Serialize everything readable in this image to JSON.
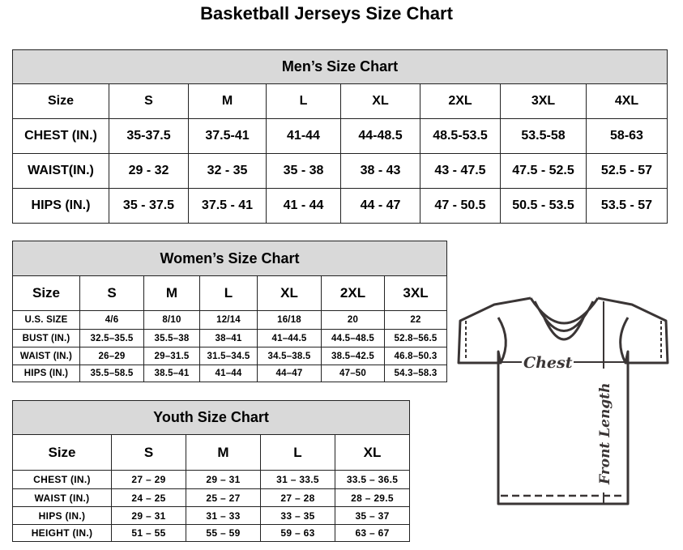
{
  "title": "Basketball Jerseys Size Chart",
  "men": {
    "title": "Men’s Size Chart",
    "header": [
      "Size",
      "S",
      "M",
      "L",
      "XL",
      "2XL",
      "3XL",
      "4XL"
    ],
    "rows": [
      [
        "CHEST (IN.)",
        "35-37.5",
        "37.5-41",
        "41-44",
        "44-48.5",
        "48.5-53.5",
        "53.5-58",
        "58-63"
      ],
      [
        "WAIST(IN.)",
        "29 - 32",
        "32 - 35",
        "35 - 38",
        "38 - 43",
        "43 - 47.5",
        "47.5 - 52.5",
        "52.5 - 57"
      ],
      [
        "HIPS (IN.)",
        "35 - 37.5",
        "37.5 - 41",
        "41 - 44",
        "44 - 47",
        "47 - 50.5",
        "50.5 - 53.5",
        "53.5 - 57"
      ]
    ]
  },
  "women": {
    "title": "Women’s Size Chart",
    "header": [
      "Size",
      "S",
      "M",
      "L",
      "XL",
      "2XL",
      "3XL"
    ],
    "rows": [
      [
        "U.S.  SIZE",
        "4/6",
        "8/10",
        "12/14",
        "16/18",
        "20",
        "22"
      ],
      [
        "BUST  (IN.)",
        "32.5–35.5",
        "35.5–38",
        "38–41",
        "41–44.5",
        "44.5–48.5",
        "52.8–56.5"
      ],
      [
        "WAIST  (IN.)",
        "26–29",
        "29–31.5",
        "31.5–34.5",
        "34.5–38.5",
        "38.5–42.5",
        "46.8–50.3"
      ],
      [
        "HIPS  (IN.)",
        "35.5–58.5",
        "38.5–41",
        "41–44",
        "44–47",
        "47–50",
        "54.3–58.3"
      ]
    ]
  },
  "youth": {
    "title": "Youth Size Chart",
    "header": [
      "Size",
      "S",
      "M",
      "L",
      "XL"
    ],
    "rows": [
      [
        "CHEST  (IN.)",
        "27  –  29",
        "29  –  31",
        "31  –  33.5",
        "33.5  –  36.5"
      ],
      [
        "WAIST  (IN.)",
        "24  –  25",
        "25  –  27",
        "27  –  28",
        "28  –  29.5"
      ],
      [
        "HIPS  (IN.)",
        "29  –  31",
        "31  –  33",
        "33  –  35",
        "35  –  37"
      ],
      [
        "HEIGHT  (IN.)",
        "51  –  55",
        "55  –  59",
        "59  –  63",
        "63  –  67"
      ]
    ]
  },
  "diagram": {
    "chest_label": "Chest",
    "length_label": "Front Length",
    "line_color": "#3a3535"
  }
}
